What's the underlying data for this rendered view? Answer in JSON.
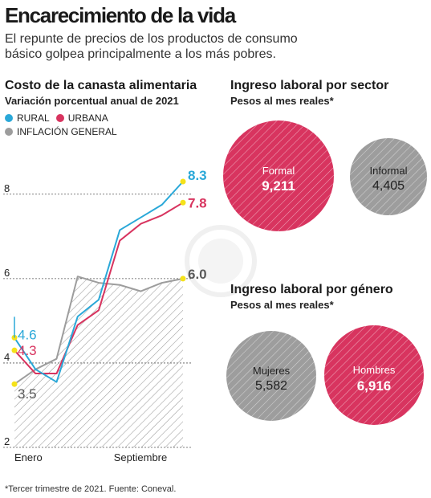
{
  "headline": "Encarecimiento de la vida",
  "subhead": "El repunte de precios de los productos de consumo básico golpea principalmente a los más pobres.",
  "colors": {
    "rural": "#2aa8d8",
    "urbana": "#d8345f",
    "inflacion": "#9d9d9d",
    "marker": "#f5e21a"
  },
  "left": {
    "title": "Costo de la canasta alimentaria",
    "subtitle": "Variación porcentual anual de 2021",
    "legend": [
      "RURAL",
      "URBANA",
      "INFLACIÓN GENERAL"
    ]
  },
  "right": {
    "sector": {
      "title": "Ingreso laboral por sector",
      "subtitle": "Pesos al mes reales*",
      "circles": [
        {
          "label": "Formal",
          "value": "9,211"
        },
        {
          "label": "Informal",
          "value": "4,405"
        }
      ]
    },
    "genero": {
      "title": "Ingreso laboral por género",
      "subtitle": "Pesos al mes reales*",
      "circles": [
        {
          "label": "Mujeres",
          "value": "5,582"
        },
        {
          "label": "Hombres",
          "value": "6,916"
        }
      ]
    }
  },
  "footnote": "*Tercer trimestre de 2021. Fuente: Coneval.",
  "chart_data": {
    "type": "line",
    "title": "Costo de la canasta alimentaria",
    "subtitle": "Variación porcentual anual de 2021",
    "x": [
      1,
      2,
      3,
      4,
      5,
      6,
      7,
      8,
      9
    ],
    "x_tick_labels": [
      {
        "x": 1,
        "label": "Enero"
      },
      {
        "x": 8,
        "label": "Septiembre"
      }
    ],
    "y_ticks": [
      2,
      4,
      6,
      8
    ],
    "ylim": [
      2,
      8.7
    ],
    "series": [
      {
        "name": "RURAL",
        "values": [
          4.6,
          3.85,
          3.55,
          5.1,
          5.5,
          7.15,
          7.45,
          7.75,
          8.3
        ],
        "end_label": "8.3",
        "start_label": "4.6"
      },
      {
        "name": "URBANA",
        "values": [
          4.3,
          3.75,
          3.75,
          4.9,
          5.25,
          6.9,
          7.3,
          7.5,
          7.8
        ],
        "end_label": "7.8",
        "start_label": "4.3"
      },
      {
        "name": "INFLACIÓN GENERAL",
        "values": [
          3.5,
          3.85,
          4.1,
          6.05,
          5.9,
          5.85,
          5.7,
          5.9,
          6.0
        ],
        "end_label": "6.0",
        "start_label": "3.5"
      }
    ],
    "grid": true
  }
}
